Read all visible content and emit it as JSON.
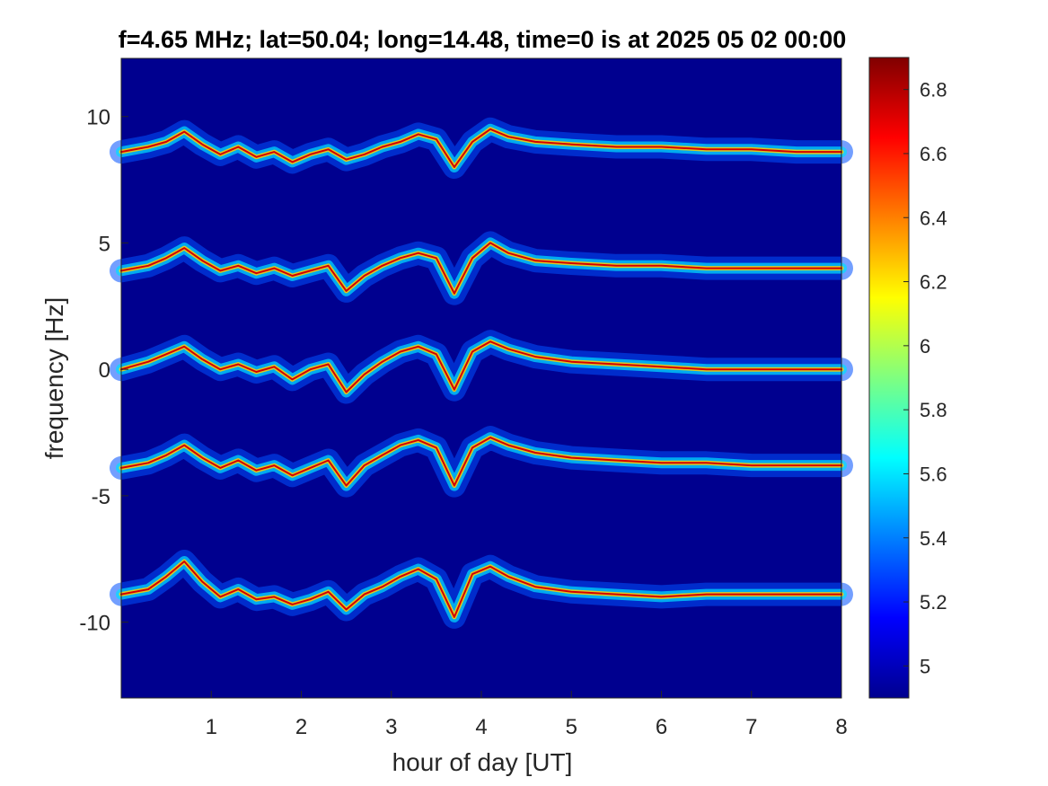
{
  "chart_data": {
    "type": "heatmap",
    "title": "f=4.65 MHz;  lat=50.04; long=14.48, time=0 is at 2025 05 02 00:00",
    "xlabel": "hour of day [UT]",
    "ylabel": "frequency [Hz]",
    "xlim": [
      0,
      8
    ],
    "ylim": [
      -13,
      12.3
    ],
    "xticks": [
      1,
      2,
      3,
      4,
      5,
      6,
      7,
      8
    ],
    "xtick_labels": [
      "1",
      "2",
      "3",
      "4",
      "5",
      "6",
      "7",
      "8"
    ],
    "yticks": [
      10,
      5,
      0,
      -5,
      -10
    ],
    "ytick_labels": [
      "10",
      "5",
      "0",
      "-5",
      "-10"
    ],
    "colormap": "jet",
    "background_color": "#00008f",
    "colorbar": {
      "range": [
        4.9,
        6.9
      ],
      "ticks": [
        6.8,
        6.6,
        6.4,
        6.2,
        6,
        5.8,
        5.6,
        5.4,
        5.2,
        5
      ],
      "tick_labels": [
        "6.8",
        "6.6",
        "6.4",
        "6.2",
        "6",
        "5.8",
        "5.6",
        "5.4",
        "5.2",
        "5"
      ]
    },
    "series": [
      {
        "center_hz": 8.6,
        "x": [
          0,
          0.3,
          0.5,
          0.7,
          0.9,
          1.1,
          1.3,
          1.5,
          1.7,
          1.9,
          2.1,
          2.3,
          2.5,
          2.7,
          2.9,
          3.1,
          3.3,
          3.5,
          3.7,
          3.9,
          4.1,
          4.3,
          4.6,
          5.0,
          5.5,
          6.0,
          6.5,
          7.0,
          7.5,
          8.0
        ],
        "y": [
          8.6,
          8.8,
          9.0,
          9.4,
          8.9,
          8.5,
          8.8,
          8.4,
          8.6,
          8.2,
          8.5,
          8.7,
          8.3,
          8.5,
          8.8,
          9.0,
          9.3,
          9.1,
          8.0,
          9.0,
          9.5,
          9.2,
          9.0,
          8.9,
          8.8,
          8.8,
          8.7,
          8.7,
          8.6,
          8.6
        ]
      },
      {
        "center_hz": 4.0,
        "x": [
          0,
          0.3,
          0.5,
          0.7,
          0.9,
          1.1,
          1.3,
          1.5,
          1.7,
          1.9,
          2.1,
          2.3,
          2.5,
          2.7,
          2.9,
          3.1,
          3.3,
          3.5,
          3.7,
          3.9,
          4.1,
          4.3,
          4.6,
          5.0,
          5.5,
          6.0,
          6.5,
          7.0,
          7.5,
          8.0
        ],
        "y": [
          3.9,
          4.1,
          4.4,
          4.8,
          4.3,
          3.9,
          4.1,
          3.8,
          4.0,
          3.7,
          3.9,
          4.1,
          3.1,
          3.7,
          4.1,
          4.4,
          4.6,
          4.4,
          3.0,
          4.4,
          5.0,
          4.6,
          4.3,
          4.2,
          4.1,
          4.1,
          4.0,
          4.0,
          4.0,
          4.0
        ]
      },
      {
        "center_hz": 0.0,
        "x": [
          0,
          0.3,
          0.5,
          0.7,
          0.9,
          1.1,
          1.3,
          1.5,
          1.7,
          1.9,
          2.1,
          2.3,
          2.5,
          2.7,
          2.9,
          3.1,
          3.3,
          3.5,
          3.7,
          3.9,
          4.1,
          4.3,
          4.6,
          5.0,
          5.5,
          6.0,
          6.5,
          7.0,
          7.5,
          8.0
        ],
        "y": [
          0.0,
          0.3,
          0.6,
          0.9,
          0.4,
          0.0,
          0.2,
          -0.1,
          0.1,
          -0.4,
          0.0,
          0.2,
          -0.9,
          -0.2,
          0.3,
          0.7,
          0.9,
          0.6,
          -0.8,
          0.7,
          1.1,
          0.8,
          0.5,
          0.3,
          0.2,
          0.1,
          0.0,
          0.0,
          0.0,
          0.0
        ]
      },
      {
        "center_hz": -3.9,
        "x": [
          0,
          0.3,
          0.5,
          0.7,
          0.9,
          1.1,
          1.3,
          1.5,
          1.7,
          1.9,
          2.1,
          2.3,
          2.5,
          2.7,
          2.9,
          3.1,
          3.3,
          3.5,
          3.7,
          3.9,
          4.1,
          4.3,
          4.6,
          5.0,
          5.5,
          6.0,
          6.5,
          7.0,
          7.5,
          8.0
        ],
        "y": [
          -3.9,
          -3.7,
          -3.4,
          -3.0,
          -3.5,
          -3.9,
          -3.6,
          -4.0,
          -3.8,
          -4.2,
          -3.9,
          -3.6,
          -4.6,
          -3.8,
          -3.4,
          -3.0,
          -2.8,
          -3.1,
          -4.6,
          -3.1,
          -2.7,
          -3.0,
          -3.3,
          -3.5,
          -3.6,
          -3.7,
          -3.7,
          -3.8,
          -3.8,
          -3.8
        ]
      },
      {
        "center_hz": -8.9,
        "x": [
          0,
          0.3,
          0.5,
          0.7,
          0.9,
          1.1,
          1.3,
          1.5,
          1.7,
          1.9,
          2.1,
          2.3,
          2.5,
          2.7,
          2.9,
          3.1,
          3.3,
          3.5,
          3.7,
          3.9,
          4.1,
          4.3,
          4.6,
          5.0,
          5.5,
          6.0,
          6.5,
          7.0,
          7.5,
          8.0
        ],
        "y": [
          -8.9,
          -8.7,
          -8.2,
          -7.6,
          -8.4,
          -9.0,
          -8.7,
          -9.1,
          -9.0,
          -9.3,
          -9.1,
          -8.8,
          -9.5,
          -8.9,
          -8.6,
          -8.2,
          -7.9,
          -8.3,
          -9.8,
          -8.1,
          -7.8,
          -8.2,
          -8.6,
          -8.8,
          -8.9,
          -9.0,
          -8.9,
          -8.9,
          -8.9,
          -8.9
        ]
      }
    ]
  }
}
